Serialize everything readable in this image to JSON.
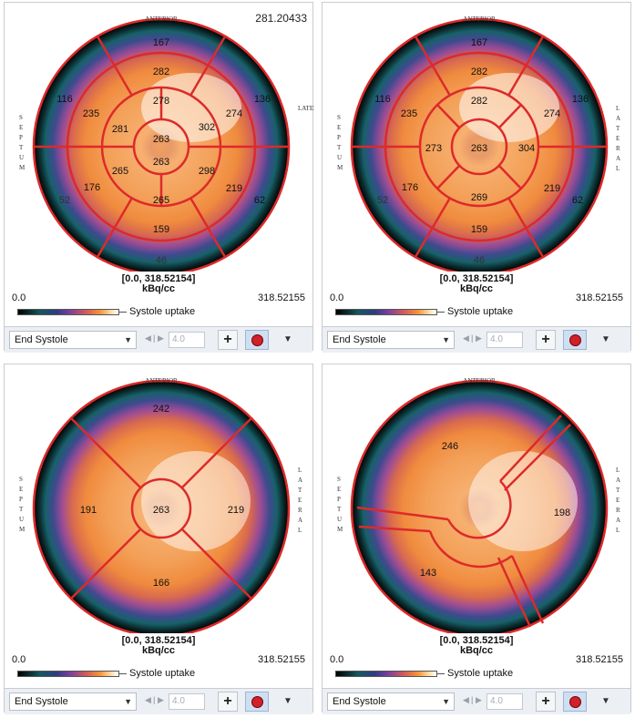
{
  "colors": {
    "segment_line": "#dd2a2a"
  },
  "panels": [
    {
      "corner_max": "281.20433",
      "range_line1": "[0.0, 318.52154]",
      "range_line2": "kBq/cc",
      "cmin": "0.0",
      "cmax": "318.52155",
      "cbar_label": "Systole uptake",
      "dropdown": "End Systole",
      "stepper_value": "4.0",
      "anterior_label": "ANTERIOR",
      "septum_label": "SEPTUM",
      "lateral_label": "LATERAL",
      "segments": [
        "167",
        "282",
        "278",
        "263",
        "263",
        "265",
        "159",
        "46",
        "136",
        "274",
        "302",
        "298",
        "219",
        "62",
        "116",
        "235",
        "281",
        "265",
        "176",
        "52"
      ]
    },
    {
      "corner_max": "",
      "range_line1": "[0.0, 318.52154]",
      "range_line2": "kBq/cc",
      "cmin": "0.0",
      "cmax": "318.52155",
      "cbar_label": "Systole uptake",
      "dropdown": "End Systole",
      "stepper_value": "4.0",
      "anterior_label": "ANTERIOR",
      "septum_label": "SEPTUM",
      "lateral_label": "LATERAL",
      "segments": [
        "167",
        "282",
        "282",
        "263",
        "304",
        "269",
        "159",
        "46",
        "136",
        "274",
        "219",
        "62",
        "116",
        "235",
        "273",
        "176",
        "52"
      ]
    },
    {
      "corner_max": "",
      "range_line1": "[0.0, 318.52154]",
      "range_line2": "kBq/cc",
      "cmin": "0.0",
      "cmax": "318.52155",
      "cbar_label": "Systole uptake",
      "dropdown": "End Systole",
      "stepper_value": "4.0",
      "anterior_label": "ANTERIOR",
      "septum_label": "SEPTUM",
      "lateral_label": "LATERAL",
      "segments": [
        "242",
        "191",
        "263",
        "219",
        "166"
      ]
    },
    {
      "corner_max": "",
      "range_line1": "[0.0, 318.52154]",
      "range_line2": "kBq/cc",
      "cmin": "0.0",
      "cmax": "318.52155",
      "cbar_label": "Systole uptake",
      "dropdown": "End Systole",
      "stepper_value": "4.0",
      "anterior_label": "ANTERIOR",
      "septum_label": "SEPTUM",
      "lateral_label": "LATERAL",
      "segments": [
        "246",
        "198",
        "143"
      ]
    }
  ]
}
